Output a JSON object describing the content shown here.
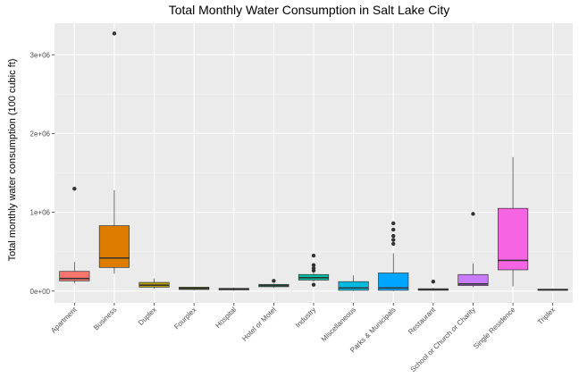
{
  "chart_data": {
    "type": "boxplot",
    "title": "Total Monthly Water Consumption in Salt Lake City",
    "xlabel": "",
    "ylabel": "Total monthly water consumption (100 cubic ft)",
    "ylim": [
      -150000,
      3400000
    ],
    "yticks": [
      0,
      1000000,
      2000000,
      3000000
    ],
    "ytick_labels": [
      "0e+00",
      "1e+06",
      "2e+06",
      "3e+06"
    ],
    "grid": true,
    "legend": "none",
    "series": [
      {
        "category": "Apartment",
        "color": "#F8766D",
        "whisker_low": 100000,
        "q1": 130000,
        "median": 160000,
        "q3": 250000,
        "whisker_high": 370000,
        "outliers": [
          1300000
        ]
      },
      {
        "category": "Business",
        "color": "#DE7C00",
        "whisker_low": 220000,
        "q1": 300000,
        "median": 420000,
        "q3": 830000,
        "whisker_high": 1280000,
        "outliers": [
          3270000
        ]
      },
      {
        "category": "Duplex",
        "color": "#B79F00",
        "whisker_low": 30000,
        "q1": 50000,
        "median": 75000,
        "q3": 110000,
        "whisker_high": 160000,
        "outliers": []
      },
      {
        "category": "Fourplex",
        "color": "#7CAE00",
        "whisker_low": 10000,
        "q1": 20000,
        "median": 35000,
        "q3": 50000,
        "whisker_high": 55000,
        "outliers": []
      },
      {
        "category": "Hospital",
        "color": "#00BA38",
        "whisker_low": 5000,
        "q1": 15000,
        "median": 25000,
        "q3": 35000,
        "whisker_high": 45000,
        "outliers": []
      },
      {
        "category": "Hotel or Motel",
        "color": "#00BF7D",
        "whisker_low": 40000,
        "q1": 55000,
        "median": 70000,
        "q3": 85000,
        "whisker_high": 95000,
        "outliers": [
          130000
        ]
      },
      {
        "category": "Industry",
        "color": "#00C1A3",
        "whisker_low": 120000,
        "q1": 140000,
        "median": 170000,
        "q3": 210000,
        "whisker_high": 230000,
        "outliers": [
          80000,
          260000,
          290000,
          330000,
          450000
        ]
      },
      {
        "category": "Miscellaneous",
        "color": "#00BAE0",
        "whisker_low": 0,
        "q1": 10000,
        "median": 40000,
        "q3": 120000,
        "whisker_high": 200000,
        "outliers": []
      },
      {
        "category": "Parks & Municipals",
        "color": "#00A5FF",
        "whisker_low": 0,
        "q1": 10000,
        "median": 40000,
        "q3": 230000,
        "whisker_high": 480000,
        "outliers": [
          600000,
          650000,
          700000,
          780000,
          860000
        ]
      },
      {
        "category": "Restaurant",
        "color": "#9590FF",
        "whisker_low": 5000,
        "q1": 10000,
        "median": 20000,
        "q3": 30000,
        "whisker_high": 40000,
        "outliers": [
          120000
        ]
      },
      {
        "category": "School or Church or Charity",
        "color": "#C77CFF",
        "whisker_low": 50000,
        "q1": 70000,
        "median": 90000,
        "q3": 210000,
        "whisker_high": 350000,
        "outliers": [
          980000
        ]
      },
      {
        "category": "Single Residence",
        "color": "#F564E3",
        "whisker_low": 60000,
        "q1": 270000,
        "median": 390000,
        "q3": 1050000,
        "whisker_high": 1700000,
        "outliers": []
      },
      {
        "category": "Triplex",
        "color": "#FF64B0",
        "whisker_low": 5000,
        "q1": 10000,
        "median": 15000,
        "q3": 25000,
        "whisker_high": 30000,
        "outliers": []
      }
    ]
  }
}
